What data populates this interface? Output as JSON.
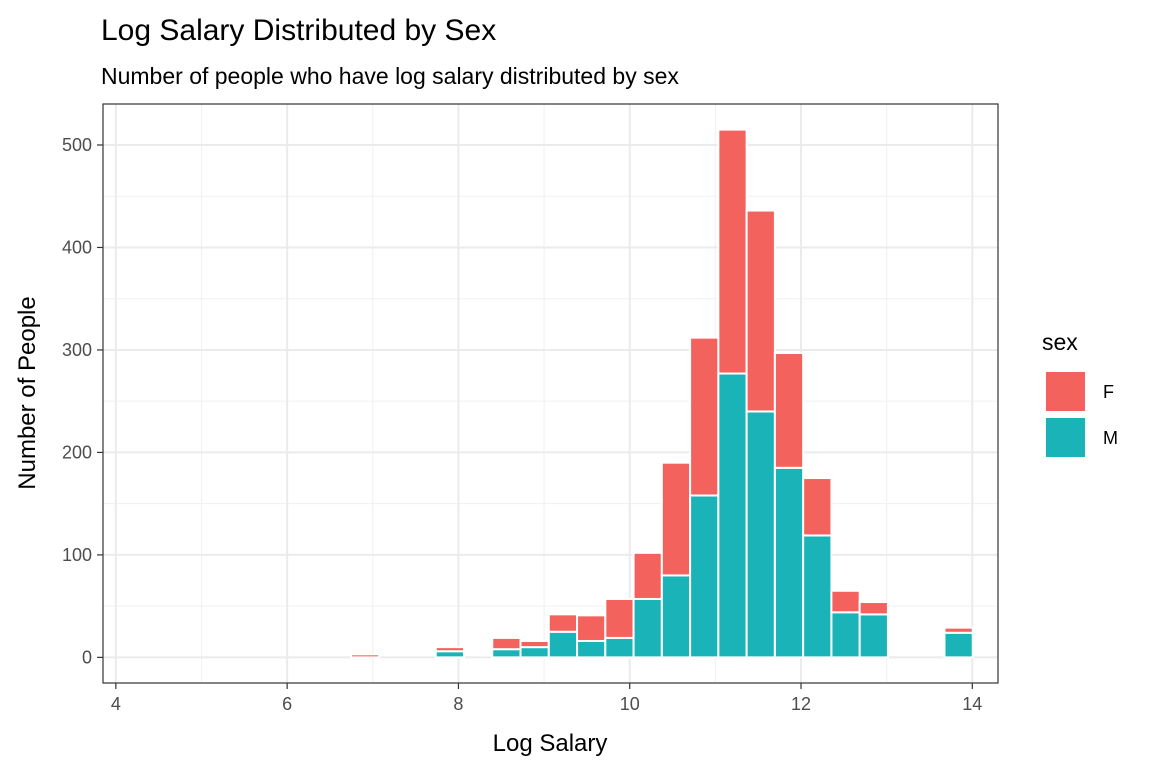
{
  "chart_data": {
    "type": "bar",
    "stacked": true,
    "title": "Log Salary Distributed by Sex",
    "subtitle": "Number of people who have log salary distributed by sex",
    "xlabel": "Log Salary",
    "ylabel": "Number of People",
    "xlim": [
      3.85,
      14.3
    ],
    "ylim": [
      -25,
      540
    ],
    "xticks": [
      4,
      6,
      8,
      10,
      12,
      14
    ],
    "yticks": [
      0,
      100,
      200,
      300,
      400,
      500
    ],
    "grid": true,
    "bin_width": 0.33,
    "x": [
      4.28,
      4.6,
      4.93,
      5.26,
      5.59,
      5.92,
      6.25,
      6.58,
      6.91,
      7.24,
      7.57,
      7.9,
      8.23,
      8.56,
      8.89,
      9.22,
      9.55,
      9.88,
      10.21,
      10.54,
      10.87,
      11.2,
      11.53,
      11.86,
      12.19,
      12.52,
      12.85,
      13.18,
      13.51,
      13.84
    ],
    "series": [
      {
        "name": "M",
        "color": "#1AB4B8",
        "values": [
          0,
          0,
          0,
          0,
          0,
          0,
          0,
          0,
          0,
          0,
          0,
          6,
          0,
          8,
          10,
          25,
          16,
          19,
          57,
          80,
          158,
          277,
          240,
          185,
          119,
          44,
          42,
          0,
          0,
          24
        ]
      },
      {
        "name": "F",
        "color": "#F4625E",
        "values": [
          0,
          0,
          0,
          0,
          0,
          0,
          0,
          0,
          3,
          0,
          0,
          4,
          0,
          11,
          6,
          17,
          25,
          38,
          45,
          110,
          154,
          238,
          196,
          112,
          56,
          21,
          12,
          0,
          0,
          5
        ]
      }
    ],
    "legend": {
      "title": "sex",
      "position": "right",
      "entries": [
        "F",
        "M"
      ]
    }
  }
}
